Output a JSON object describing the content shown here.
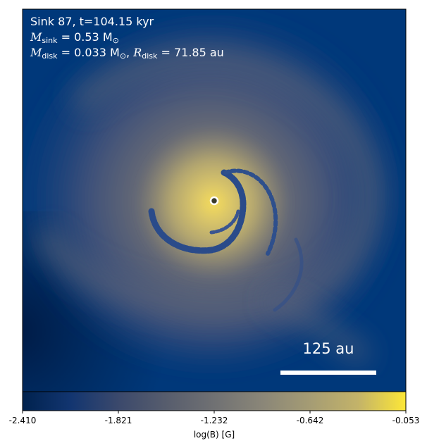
{
  "annotations": {
    "sink_line": "Sink 87, t=104.15 kyr",
    "msink_symbol": "M",
    "msink_sub": "sink",
    "msink_value": " = 0.53 M",
    "msink_sun": "⊙",
    "mdisk_symbol": "M",
    "mdisk_sub": "disk",
    "mdisk_value": " = 0.033 M",
    "mdisk_sun": "⊙",
    "mdisk_sep": ", ",
    "rdisk_symbol": "R",
    "rdisk_sub": "disk",
    "rdisk_value": " = 71.85 au"
  },
  "scale_bar": {
    "label": "125 au"
  },
  "colorbar": {
    "label": "log(B) [G]",
    "ticks": [
      "-2.410",
      "-1.821",
      "-1.232",
      "-0.642",
      "-0.053"
    ],
    "min": -2.41,
    "max": -0.053,
    "colormap": "cividis"
  },
  "colors": {
    "map_background": "#00387a",
    "map_dark": "#00224e",
    "disk_core": "#fde737",
    "arm_dark": "#2a4b8a",
    "scale_bar": "#ffffff",
    "sink_marker_edge": "#ffffff",
    "sink_marker_fill": "#3a3a2a"
  }
}
